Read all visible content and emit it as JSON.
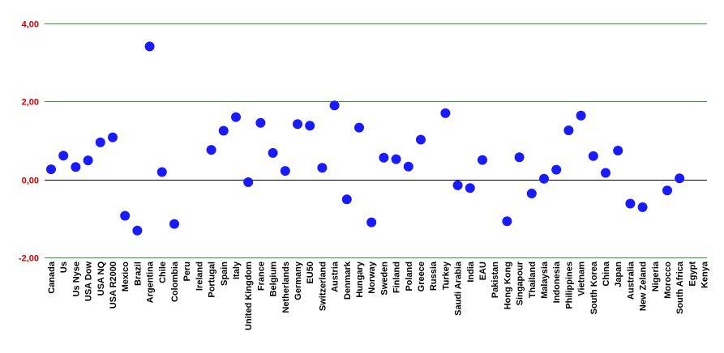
{
  "chart_data": {
    "type": "scatter",
    "ylim": [
      -2,
      4
    ],
    "y_ticks": [
      -2,
      0,
      2,
      4
    ],
    "y_tick_labels": [
      "-2,00",
      "0,00",
      "2,00",
      "4,00"
    ],
    "grid": true,
    "colors": {
      "marker": "#1a1aff",
      "gridline": "#339933",
      "zeroline": "#000000",
      "ytick_text": "#cc0000"
    },
    "categories": [
      "Canada",
      "Us",
      "Us Nyse",
      "USA Dow",
      "USA NQ",
      "USA R2000",
      "Mexico",
      "Brazil",
      "Argentina",
      "Chile",
      "Colombia",
      "Peru",
      "Ireland",
      "Portugal",
      "Spain",
      "Italy",
      "United Kingdom",
      "France",
      "Belgium",
      "Netherlands",
      "Germany",
      "EU50",
      "Switzerland",
      "Austria",
      "Denmark",
      "Hungary",
      "Norway",
      "Sweden",
      "Finland",
      "Poland",
      "Greece",
      "Russia",
      "Turkey",
      "Saudi Arabia",
      "India",
      "EAU",
      "Pakistan",
      "Hong Kong",
      "Singapour",
      "Thailand",
      "Malaysia",
      "Indonesia",
      "Philippines",
      "Vietnam",
      "South Korea",
      "China",
      "Japan",
      "Australia",
      "New Zeland",
      "Nigeria",
      "Morocco",
      "South Africa",
      "Egypt",
      "Kenya"
    ],
    "values": [
      0.26,
      0.61,
      0.32,
      0.49,
      0.95,
      1.08,
      -0.93,
      -1.31,
      3.41,
      0.19,
      -1.14,
      null,
      null,
      0.76,
      1.25,
      1.6,
      -0.07,
      1.45,
      0.68,
      0.22,
      1.42,
      1.38,
      0.3,
      1.9,
      -0.51,
      1.33,
      -1.1,
      0.56,
      0.52,
      0.33,
      1.02,
      null,
      1.7,
      -0.15,
      -0.22,
      0.5,
      null,
      -1.07,
      0.57,
      -0.36,
      0.02,
      0.25,
      1.26,
      1.64,
      0.6,
      0.17,
      0.74,
      -0.62,
      -0.71,
      null,
      -0.28,
      0.03,
      null,
      null
    ]
  }
}
